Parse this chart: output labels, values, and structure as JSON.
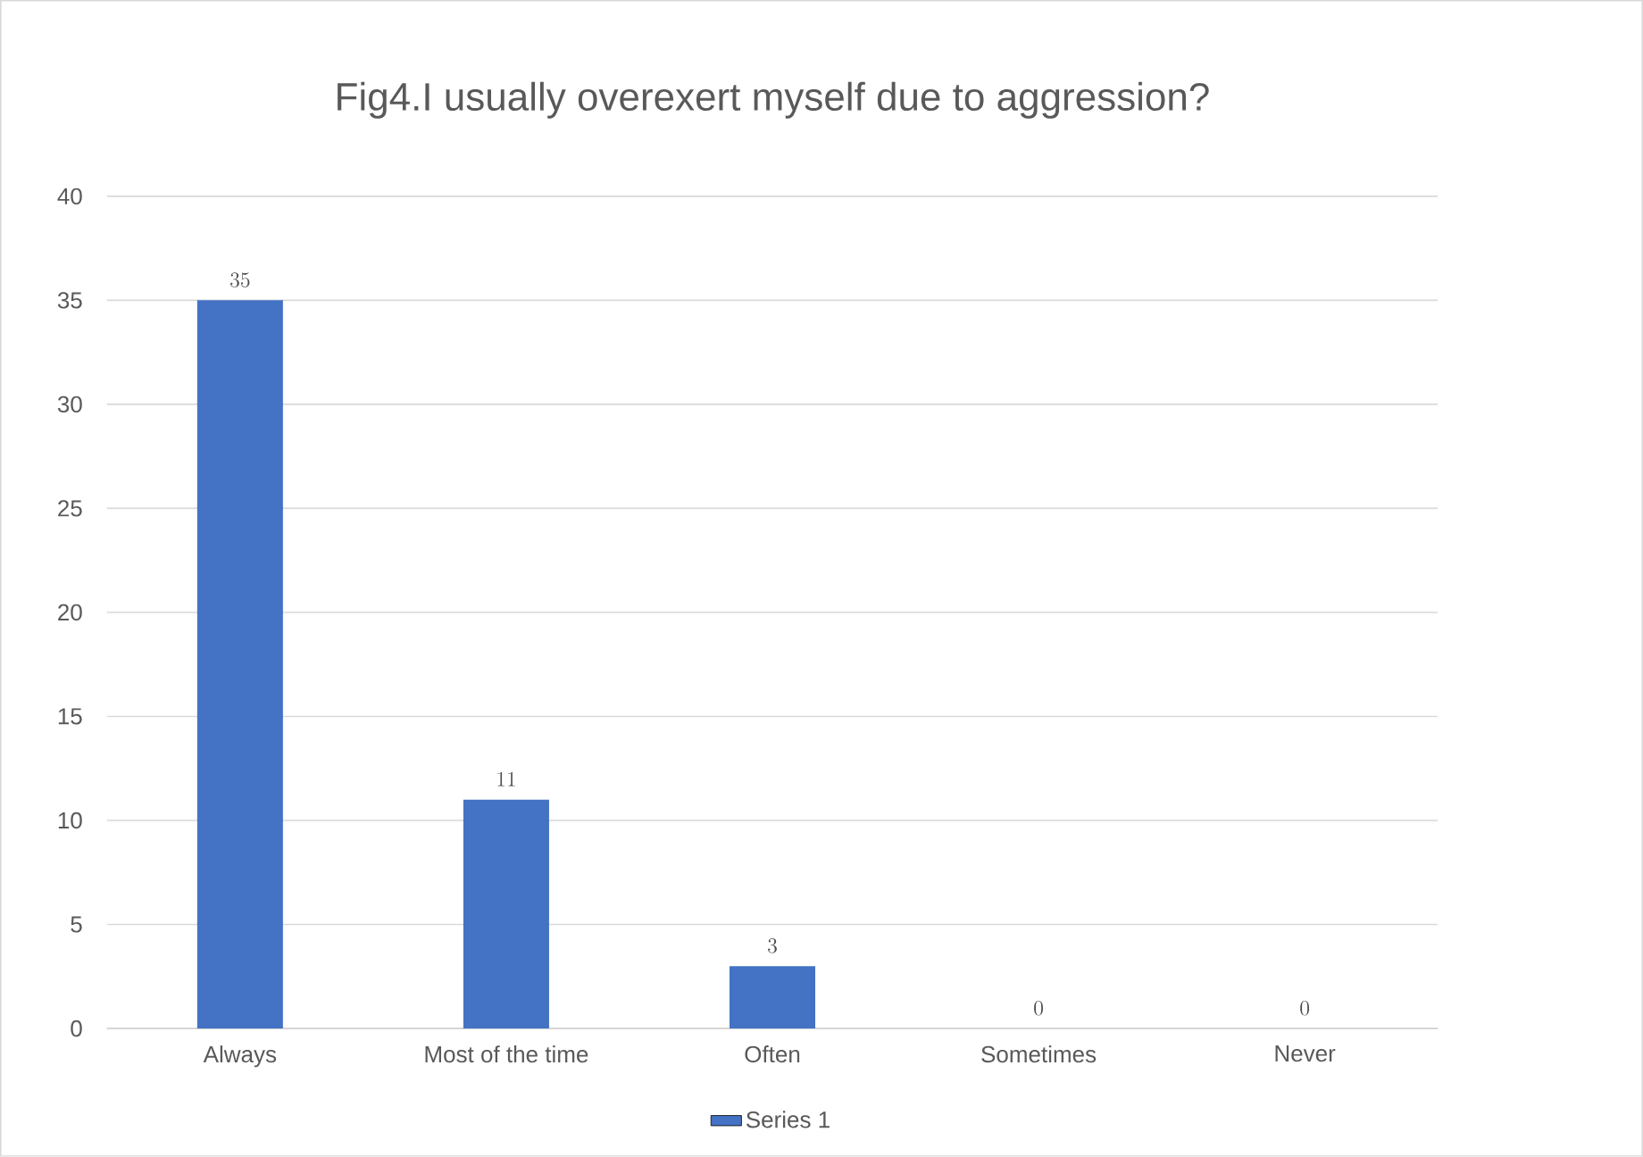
{
  "chart_data": {
    "type": "bar",
    "title": "Fig4.I usually overexert myself due to aggression?",
    "categories": [
      "Always",
      "Most of the time",
      "Often",
      "Sometimes",
      "Never"
    ],
    "series": [
      {
        "name": "Series 1",
        "color": "#4472c4",
        "values": [
          35,
          11,
          3,
          0,
          0
        ]
      }
    ],
    "ylim": [
      0,
      40
    ],
    "yticks": [
      0,
      5,
      10,
      15,
      20,
      25,
      30,
      35,
      40
    ],
    "grid": "y",
    "legend": "bottom",
    "data_labels": true
  }
}
